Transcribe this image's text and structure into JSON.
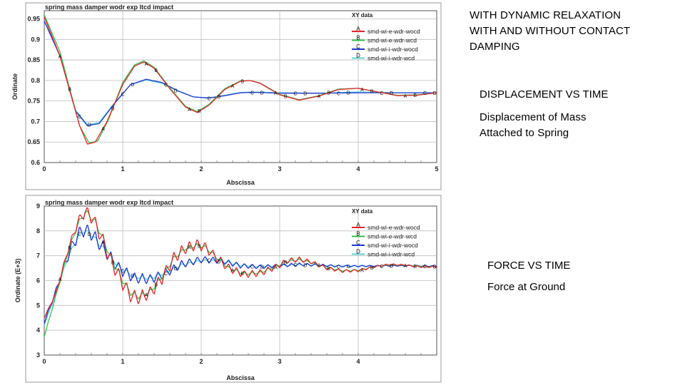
{
  "side_text": {
    "intro_lines": [
      "WITH DYNAMIC RELAXATION",
      "WITH AND WITHOUT CONTACT",
      "DAMPING"
    ],
    "displacement_title": "DISPLACEMENT VS TIME",
    "displacement_desc_lines": [
      "Displacement of Mass",
      "Attached to Spring"
    ],
    "force_title": "FORCE VS TIME",
    "force_desc": "Force at Ground"
  },
  "colors": {
    "A": "#e8252a",
    "B": "#33c24a",
    "C": "#1c35d6",
    "D": "#5fd6d8"
  },
  "chart_data": [
    {
      "type": "line",
      "title": "spring mass damper wodr exp ltcd impact",
      "legend_title": "XY data",
      "legend_position": "top-right",
      "xlabel": "Abscissa",
      "ylabel": "Ordinate",
      "xlim": [
        0,
        5
      ],
      "ylim": [
        0.6,
        0.97
      ],
      "xticks": [
        0,
        1,
        2,
        3,
        4,
        5
      ],
      "yticks": [
        0.6,
        0.65,
        0.7,
        0.75,
        0.8,
        0.85,
        0.9,
        0.95
      ],
      "ytick_labels": [
        "0.6",
        "0.65",
        "0.7",
        "0.75",
        "0.8",
        "0.85",
        "0.9",
        "0.95"
      ],
      "grid": true,
      "series": [
        {
          "marker": "A",
          "name": "smd-wi-e-wdr-wocd",
          "color": "#e8252a",
          "x": [
            0,
            0.2,
            0.45,
            0.55,
            0.65,
            0.8,
            1.0,
            1.15,
            1.27,
            1.4,
            1.6,
            1.8,
            1.95,
            2.1,
            2.3,
            2.5,
            2.62,
            2.75,
            3.0,
            3.25,
            3.5,
            3.75,
            4.0,
            4.25,
            4.5,
            4.75,
            5.0
          ],
          "y": [
            0.955,
            0.86,
            0.69,
            0.645,
            0.65,
            0.7,
            0.79,
            0.835,
            0.845,
            0.83,
            0.78,
            0.735,
            0.722,
            0.74,
            0.778,
            0.798,
            0.8,
            0.793,
            0.765,
            0.752,
            0.762,
            0.778,
            0.781,
            0.772,
            0.763,
            0.764,
            0.77
          ]
        },
        {
          "marker": "B",
          "name": "smd-wi-e-wdr-wcd",
          "color": "#33c24a",
          "x": [
            0,
            0.2,
            0.45,
            0.57,
            0.68,
            0.82,
            1.0,
            1.15,
            1.27,
            1.4,
            1.6,
            1.8,
            1.95,
            2.1,
            2.3,
            2.5,
            2.62,
            2.75,
            3.0,
            3.25,
            3.5,
            3.75,
            4.0,
            4.25,
            4.5,
            4.75,
            5.0
          ],
          "y": [
            0.96,
            0.87,
            0.69,
            0.648,
            0.652,
            0.705,
            0.795,
            0.838,
            0.848,
            0.832,
            0.782,
            0.737,
            0.724,
            0.742,
            0.78,
            0.799,
            0.8,
            0.794,
            0.766,
            0.753,
            0.763,
            0.779,
            0.781,
            0.772,
            0.764,
            0.765,
            0.77
          ]
        },
        {
          "marker": "C",
          "name": "smd-wi-i-wdr-wocd",
          "color": "#1c35d6",
          "x": [
            0,
            0.2,
            0.4,
            0.55,
            0.7,
            0.9,
            1.1,
            1.3,
            1.5,
            1.7,
            1.9,
            2.1,
            2.3,
            2.5,
            2.7,
            3.0,
            3.5,
            4.0,
            4.5,
            5.0
          ],
          "y": [
            0.945,
            0.86,
            0.725,
            0.69,
            0.695,
            0.745,
            0.79,
            0.803,
            0.795,
            0.775,
            0.76,
            0.757,
            0.763,
            0.77,
            0.771,
            0.769,
            0.769,
            0.77,
            0.77,
            0.77
          ]
        },
        {
          "marker": "D",
          "name": "smd-wi-i-wdr-wcd",
          "color": "#5fd6d8",
          "x": [
            0,
            0.2,
            0.4,
            0.55,
            0.7,
            0.9,
            1.1,
            1.3,
            1.5,
            1.7,
            1.9,
            2.1,
            2.3,
            2.5,
            2.7,
            3.0,
            3.5,
            4.0,
            4.5,
            5.0
          ],
          "y": [
            0.945,
            0.86,
            0.728,
            0.692,
            0.698,
            0.747,
            0.79,
            0.801,
            0.793,
            0.774,
            0.76,
            0.758,
            0.764,
            0.771,
            0.772,
            0.77,
            0.769,
            0.772,
            0.77,
            0.77
          ]
        }
      ]
    },
    {
      "type": "line",
      "title": "spring mass damper wodr exp ltcd impact",
      "legend_title": "XY data",
      "legend_position": "top-right",
      "xlabel": "Abscissa",
      "ylabel": "Ordinate (E+3)",
      "xlim": [
        0,
        5
      ],
      "ylim": [
        3,
        9
      ],
      "xticks": [
        0,
        1,
        2,
        3,
        4
      ],
      "yticks": [
        3,
        4,
        5,
        6,
        7,
        8,
        9
      ],
      "ytick_labels": [
        "3",
        "4",
        "5",
        "6",
        "7",
        "8",
        "9"
      ],
      "grid": true,
      "series": [
        {
          "marker": "A",
          "name": "smd-wi-e-wdr-wocd",
          "color": "#e8252a",
          "x": [
            0,
            0.15,
            0.3,
            0.42,
            0.52,
            0.62,
            0.72,
            0.85,
            1.0,
            1.1,
            1.2,
            1.35,
            1.5,
            1.65,
            1.8,
            1.95,
            2.05,
            2.2,
            2.35,
            2.55,
            2.75,
            2.95,
            3.1,
            3.25,
            3.4,
            3.6,
            3.8,
            4.0,
            4.2,
            4.4,
            4.6,
            4.8,
            5.0
          ],
          "y": [
            4.5,
            5.5,
            7.2,
            8.3,
            8.8,
            8.5,
            7.8,
            6.8,
            5.9,
            5.4,
            5.3,
            5.5,
            6.1,
            6.9,
            7.3,
            7.45,
            7.35,
            6.9,
            6.5,
            6.25,
            6.3,
            6.55,
            6.8,
            6.85,
            6.75,
            6.5,
            6.38,
            6.4,
            6.55,
            6.65,
            6.62,
            6.55,
            6.55
          ],
          "oscillation": [
            0.02,
            0.05,
            0.12,
            0.2,
            0.25,
            0.28,
            0.3,
            0.3,
            0.3,
            0.28,
            0.27,
            0.26,
            0.26,
            0.25,
            0.24,
            0.22,
            0.2,
            0.18,
            0.17,
            0.15,
            0.14,
            0.12,
            0.11,
            0.1,
            0.08,
            0.07,
            0.06,
            0.05,
            0.04,
            0.03,
            0.03,
            0.03,
            0.03
          ]
        },
        {
          "marker": "B",
          "name": "smd-wi-e-wdr-wcd",
          "color": "#33c24a",
          "x": [
            0,
            0.15,
            0.3,
            0.42,
            0.52,
            0.62,
            0.72,
            0.85,
            1.0,
            1.1,
            1.2,
            1.35,
            1.5,
            1.65,
            1.8,
            1.95,
            2.05,
            2.2,
            2.35,
            2.55,
            2.75,
            2.95,
            3.1,
            3.25,
            3.4,
            3.6,
            3.8,
            4.0,
            4.2,
            4.4,
            4.6,
            4.8,
            5.0
          ],
          "y": [
            3.75,
            5.4,
            7.1,
            8.2,
            8.75,
            8.5,
            7.9,
            6.9,
            6.0,
            5.5,
            5.35,
            5.55,
            6.15,
            6.9,
            7.3,
            7.42,
            7.35,
            6.92,
            6.5,
            6.27,
            6.32,
            6.56,
            6.78,
            6.83,
            6.73,
            6.52,
            6.4,
            6.42,
            6.55,
            6.63,
            6.62,
            6.57,
            6.55
          ],
          "oscillation": [
            0.02,
            0.04,
            0.08,
            0.12,
            0.15,
            0.15,
            0.14,
            0.13,
            0.12,
            0.11,
            0.1,
            0.1,
            0.09,
            0.09,
            0.08,
            0.08,
            0.07,
            0.07,
            0.06,
            0.06,
            0.05,
            0.05,
            0.05,
            0.04,
            0.04,
            0.04,
            0.03,
            0.03,
            0.03,
            0.02,
            0.02,
            0.02,
            0.02
          ]
        },
        {
          "marker": "C",
          "name": "smd-wi-i-wdr-wocd",
          "color": "#1c35d6",
          "x": [
            0,
            0.15,
            0.3,
            0.42,
            0.5,
            0.6,
            0.75,
            0.95,
            1.15,
            1.35,
            1.55,
            1.75,
            2.0,
            2.25,
            2.5,
            2.75,
            3.0,
            3.25,
            3.5,
            3.75,
            4.0,
            4.5,
            5.0
          ],
          "y": [
            4.3,
            5.6,
            7.0,
            7.8,
            8.05,
            7.9,
            7.3,
            6.5,
            6.1,
            6.05,
            6.3,
            6.65,
            6.85,
            6.8,
            6.6,
            6.55,
            6.6,
            6.65,
            6.62,
            6.58,
            6.58,
            6.6,
            6.58
          ],
          "oscillation": [
            0.02,
            0.1,
            0.25,
            0.3,
            0.3,
            0.3,
            0.28,
            0.25,
            0.22,
            0.2,
            0.18,
            0.16,
            0.14,
            0.12,
            0.1,
            0.08,
            0.07,
            0.06,
            0.05,
            0.04,
            0.03,
            0.02,
            0.02
          ]
        },
        {
          "marker": "D",
          "name": "smd-wi-i-wdr-wcd",
          "color": "#5fd6d8",
          "x": [
            0,
            0.15,
            0.3,
            0.42,
            0.5,
            0.6,
            0.75,
            0.95,
            1.15,
            1.35,
            1.55,
            1.75,
            2.0,
            2.25,
            2.5,
            2.75,
            3.0,
            3.25,
            3.5,
            3.75,
            4.0,
            4.5,
            5.0
          ],
          "y": [
            4.2,
            5.5,
            6.9,
            7.7,
            8.0,
            7.85,
            7.3,
            6.55,
            6.15,
            6.1,
            6.32,
            6.62,
            6.8,
            6.78,
            6.62,
            6.57,
            6.6,
            6.64,
            6.62,
            6.59,
            6.59,
            6.6,
            6.58
          ],
          "oscillation": [
            0.01,
            0.04,
            0.08,
            0.1,
            0.1,
            0.1,
            0.09,
            0.08,
            0.08,
            0.07,
            0.06,
            0.06,
            0.05,
            0.05,
            0.04,
            0.04,
            0.03,
            0.03,
            0.03,
            0.02,
            0.02,
            0.02,
            0.02
          ]
        }
      ]
    }
  ]
}
